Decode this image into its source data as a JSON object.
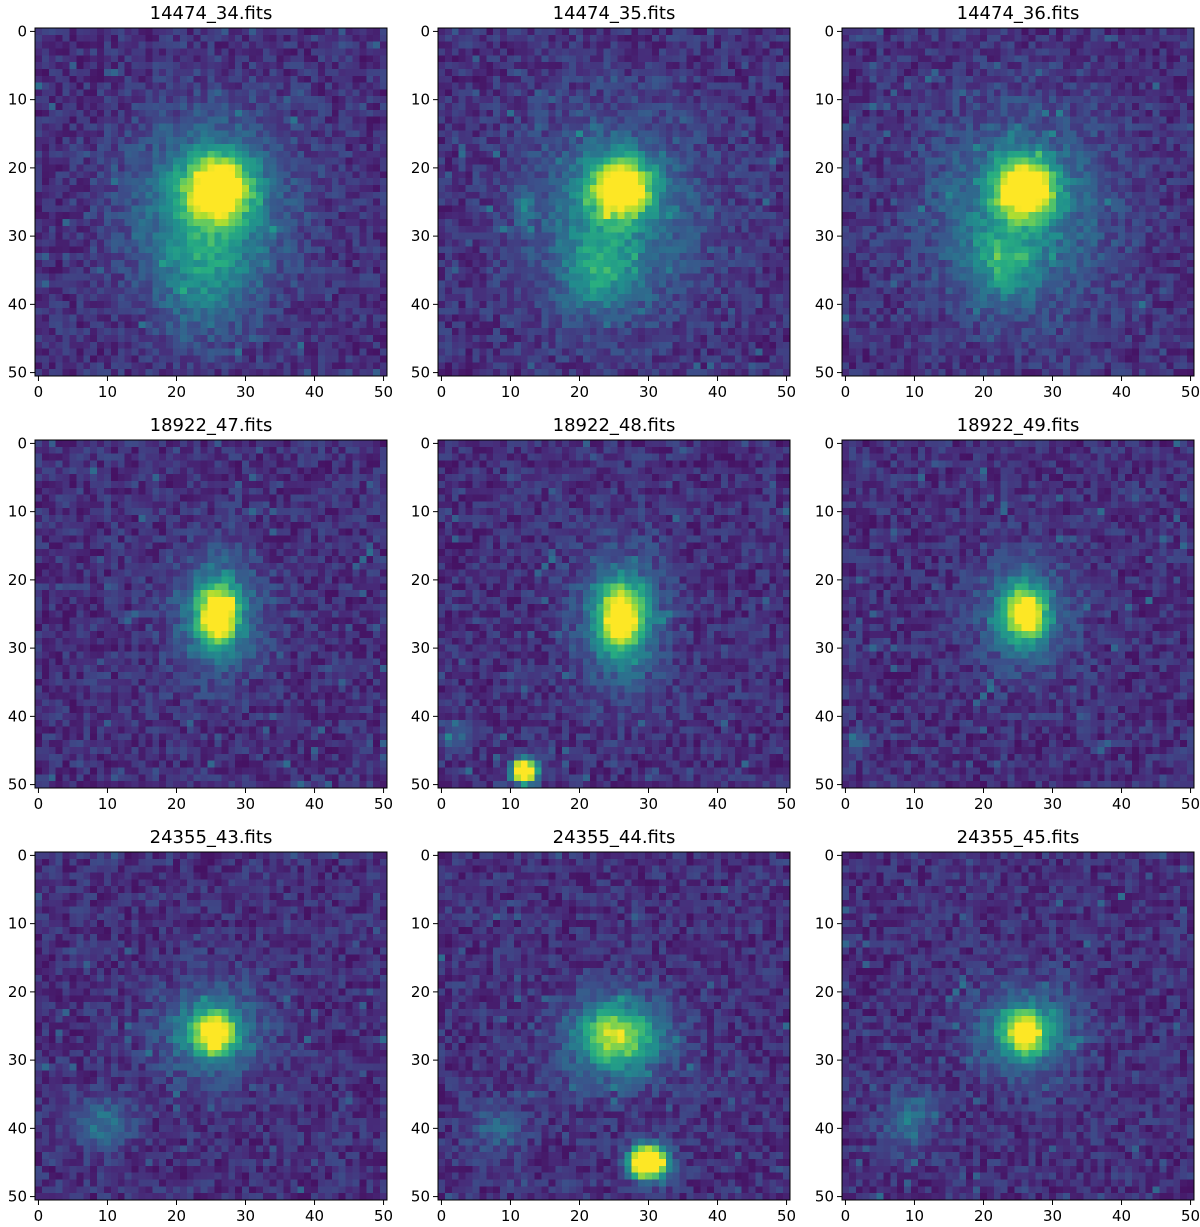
{
  "figure": {
    "background_color": "#440154",
    "colormap": "viridis",
    "axis_range": [
      0,
      50
    ],
    "x_ticks": [
      "0",
      "10",
      "20",
      "30",
      "40",
      "50"
    ],
    "y_ticks": [
      "0",
      "10",
      "20",
      "30",
      "40",
      "50"
    ],
    "panels": [
      {
        "title": "14474_34.fits",
        "blobs": [
          {
            "x": 26,
            "y": 23,
            "rx": 3.2,
            "ry": 3.2,
            "amp": 0.95
          },
          {
            "x": 25,
            "y": 26,
            "rx": 8,
            "ry": 9,
            "amp": 0.35
          },
          {
            "x": 24,
            "y": 36,
            "rx": 4.5,
            "ry": 6,
            "amp": 0.22
          }
        ]
      },
      {
        "title": "14474_35.fits",
        "blobs": [
          {
            "x": 26,
            "y": 23,
            "rx": 3.0,
            "ry": 3.0,
            "amp": 1.0
          },
          {
            "x": 25,
            "y": 27,
            "rx": 9,
            "ry": 10,
            "amp": 0.28
          },
          {
            "x": 23,
            "y": 35,
            "rx": 3.5,
            "ry": 4,
            "amp": 0.3
          },
          {
            "x": 12,
            "y": 26,
            "rx": 0.8,
            "ry": 1.2,
            "amp": 0.3
          }
        ]
      },
      {
        "title": "14474_36.fits",
        "blobs": [
          {
            "x": 26,
            "y": 23,
            "rx": 3.0,
            "ry": 3.0,
            "amp": 1.0
          },
          {
            "x": 25,
            "y": 27,
            "rx": 9,
            "ry": 10,
            "amp": 0.3
          },
          {
            "x": 23,
            "y": 34,
            "rx": 3,
            "ry": 3.5,
            "amp": 0.3
          }
        ]
      },
      {
        "title": "18922_47.fits",
        "blobs": [
          {
            "x": 26,
            "y": 25,
            "rx": 2,
            "ry": 3,
            "amp": 0.9
          },
          {
            "x": 26,
            "y": 25,
            "rx": 4.5,
            "ry": 6,
            "amp": 0.3
          }
        ]
      },
      {
        "title": "18922_48.fits",
        "blobs": [
          {
            "x": 26,
            "y": 25.5,
            "rx": 2.2,
            "ry": 3.2,
            "amp": 0.9
          },
          {
            "x": 26,
            "y": 26,
            "rx": 4.5,
            "ry": 7,
            "amp": 0.3
          },
          {
            "x": 12,
            "y": 48,
            "rx": 1.2,
            "ry": 1.2,
            "amp": 1.4
          },
          {
            "x": 2,
            "y": 43,
            "rx": 1.5,
            "ry": 1.5,
            "amp": 0.2
          }
        ]
      },
      {
        "title": "18922_49.fits",
        "blobs": [
          {
            "x": 26,
            "y": 25,
            "rx": 2,
            "ry": 2.5,
            "amp": 0.85
          },
          {
            "x": 26,
            "y": 25,
            "rx": 4.5,
            "ry": 5.5,
            "amp": 0.3
          },
          {
            "x": 2,
            "y": 44,
            "rx": 1.2,
            "ry": 1.5,
            "amp": 0.15
          }
        ]
      },
      {
        "title": "24355_43.fits",
        "blobs": [
          {
            "x": 25.5,
            "y": 26,
            "rx": 2,
            "ry": 2,
            "amp": 0.85
          },
          {
            "x": 25,
            "y": 26,
            "rx": 5,
            "ry": 4.5,
            "amp": 0.35
          },
          {
            "x": 9,
            "y": 39,
            "rx": 3,
            "ry": 2.5,
            "amp": 0.25
          }
        ]
      },
      {
        "title": "24355_44.fits",
        "blobs": [
          {
            "x": 25.5,
            "y": 26.5,
            "rx": 3.5,
            "ry": 3,
            "amp": 0.55
          },
          {
            "x": 25,
            "y": 27,
            "rx": 6,
            "ry": 5,
            "amp": 0.25
          },
          {
            "x": 30,
            "y": 45,
            "rx": 1.8,
            "ry": 1.6,
            "amp": 1.6
          },
          {
            "x": 8,
            "y": 40,
            "rx": 2.5,
            "ry": 2.5,
            "amp": 0.2
          }
        ]
      },
      {
        "title": "24355_45.fits",
        "blobs": [
          {
            "x": 26,
            "y": 26,
            "rx": 2,
            "ry": 2,
            "amp": 0.8
          },
          {
            "x": 26,
            "y": 26,
            "rx": 5,
            "ry": 4.5,
            "amp": 0.35
          },
          {
            "x": 9,
            "y": 39,
            "rx": 2.5,
            "ry": 3,
            "amp": 0.25
          }
        ]
      }
    ]
  }
}
